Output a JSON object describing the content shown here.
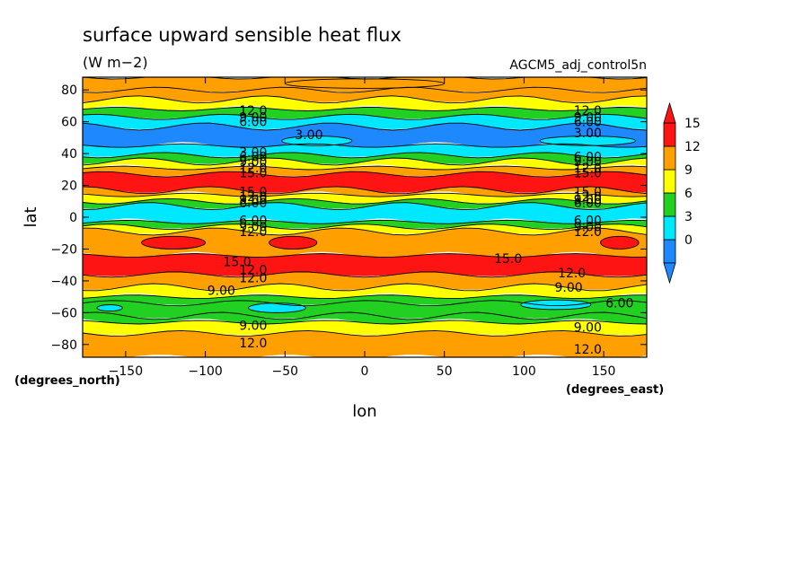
{
  "chart_data": {
    "type": "heatmap",
    "title": "surface upward sensible heat flux",
    "units": "(W m−2)",
    "dataset": "AGCM5_adj_control5n",
    "xlabel": "lon",
    "ylabel": "lat",
    "x_unit_label": "(degrees_east)",
    "y_unit_label": "(degrees_north)",
    "xlim": [
      -177,
      177
    ],
    "ylim": [
      -88,
      88
    ],
    "x_ticks": [
      -150,
      -100,
      -50,
      0,
      50,
      100,
      150
    ],
    "y_ticks": [
      -80,
      -60,
      -40,
      -20,
      0,
      20,
      40,
      60,
      80
    ],
    "x_tick_labels": [
      "−150",
      "−100",
      "−50",
      "0",
      "50",
      "100",
      "150"
    ],
    "y_tick_labels": [
      "−80",
      "−60",
      "−40",
      "−20",
      "0",
      "20",
      "40",
      "60",
      "80"
    ],
    "colorbar": {
      "levels": [
        0,
        3,
        6,
        9,
        12,
        15
      ],
      "labels": [
        "0",
        "3",
        "6",
        "9",
        "12",
        "15"
      ],
      "colors": [
        "#1e88ff",
        "#00e8ff",
        "#22d022",
        "#ffff00",
        "#ffa000",
        "#ff1414"
      ],
      "extend": "both"
    },
    "bands": [
      {
        "lat": [
          80,
          88
        ],
        "value": 12
      },
      {
        "lat": [
          74,
          80
        ],
        "value": 12
      },
      {
        "lat": [
          68,
          74
        ],
        "value": 9
      },
      {
        "lat": [
          63,
          68
        ],
        "value": 6
      },
      {
        "lat": [
          57,
          63
        ],
        "value": 3
      },
      {
        "lat": [
          45,
          57
        ],
        "value": 0
      },
      {
        "lat": [
          39,
          45
        ],
        "value": 3
      },
      {
        "lat": [
          35,
          39
        ],
        "value": 6
      },
      {
        "lat": [
          31,
          35
        ],
        "value": 9
      },
      {
        "lat": [
          27,
          31
        ],
        "value": 12
      },
      {
        "lat": [
          17,
          27
        ],
        "value": 15
      },
      {
        "lat": [
          14,
          17
        ],
        "value": 12
      },
      {
        "lat": [
          10,
          14
        ],
        "value": 9
      },
      {
        "lat": [
          7,
          10
        ],
        "value": 6
      },
      {
        "lat": [
          -3,
          7
        ],
        "value": 3
      },
      {
        "lat": [
          -6,
          -3
        ],
        "value": 6
      },
      {
        "lat": [
          -9,
          -6
        ],
        "value": 9
      },
      {
        "lat": [
          -24,
          -9
        ],
        "value": 12
      },
      {
        "lat": [
          -36,
          -24
        ],
        "value": 15
      },
      {
        "lat": [
          -44,
          -36
        ],
        "value": 12
      },
      {
        "lat": [
          -50,
          -44
        ],
        "value": 9
      },
      {
        "lat": [
          -54,
          -50
        ],
        "value": 6
      },
      {
        "lat": [
          -62,
          -54
        ],
        "value": 6
      },
      {
        "lat": [
          -66,
          -62
        ],
        "value": 6
      },
      {
        "lat": [
          -73,
          -66
        ],
        "value": 9
      },
      {
        "lat": [
          -88,
          -73
        ],
        "value": 12
      }
    ],
    "blobs": [
      {
        "lon": -30,
        "lat": 48,
        "rlon": 22,
        "rlat": 3,
        "value": 3
      },
      {
        "lon": 140,
        "lat": 48,
        "rlon": 30,
        "rlat": 3,
        "value": 3
      },
      {
        "lon": -55,
        "lat": -57,
        "rlon": 18,
        "rlat": 3,
        "value": 3
      },
      {
        "lon": -160,
        "lat": -57,
        "rlon": 8,
        "rlat": 2,
        "value": 3
      },
      {
        "lon": 120,
        "lat": -55,
        "rlon": 22,
        "rlat": 3,
        "value": 3
      },
      {
        "lon": -120,
        "lat": -16,
        "rlon": 20,
        "rlat": 4,
        "value": 15
      },
      {
        "lon": -45,
        "lat": -16,
        "rlon": 15,
        "rlat": 4,
        "value": 15
      },
      {
        "lon": 160,
        "lat": -16,
        "rlon": 12,
        "rlat": 4,
        "value": 15
      },
      {
        "lon": 0,
        "lat": 84,
        "rlon": 50,
        "rlat": 3,
        "value": 12
      }
    ],
    "contour_labels": [
      {
        "text": "12.0",
        "lon": -70,
        "lat": 67
      },
      {
        "text": "9.00",
        "lon": -70,
        "lat": 63
      },
      {
        "text": "6.00",
        "lon": -70,
        "lat": 60
      },
      {
        "text": "3.00",
        "lon": -35,
        "lat": 52
      },
      {
        "text": "3.00",
        "lon": -70,
        "lat": 41
      },
      {
        "text": "6.00",
        "lon": -70,
        "lat": 38
      },
      {
        "text": "9.00",
        "lon": -70,
        "lat": 35
      },
      {
        "text": "12.0",
        "lon": -70,
        "lat": 31
      },
      {
        "text": "15.0",
        "lon": -70,
        "lat": 28
      },
      {
        "text": "15.0",
        "lon": -70,
        "lat": 16
      },
      {
        "text": "12.0",
        "lon": -70,
        "lat": 13
      },
      {
        "text": "9.00",
        "lon": -70,
        "lat": 11
      },
      {
        "text": "6.00",
        "lon": -70,
        "lat": 9
      },
      {
        "text": "6.00",
        "lon": -70,
        "lat": -2
      },
      {
        "text": "9.00",
        "lon": -70,
        "lat": -6
      },
      {
        "text": "12.0",
        "lon": -70,
        "lat": -9
      },
      {
        "text": "15.0",
        "lon": -80,
        "lat": -28
      },
      {
        "text": "12.0",
        "lon": -70,
        "lat": -33
      },
      {
        "text": "12.0",
        "lon": -70,
        "lat": -38
      },
      {
        "text": "9.00",
        "lon": -90,
        "lat": -46
      },
      {
        "text": "9.00",
        "lon": -70,
        "lat": -68
      },
      {
        "text": "12.0",
        "lon": -70,
        "lat": -79
      },
      {
        "text": "12.0",
        "lon": 140,
        "lat": 67
      },
      {
        "text": "9.00",
        "lon": 140,
        "lat": 63
      },
      {
        "text": "6.00",
        "lon": 140,
        "lat": 60
      },
      {
        "text": "3.00",
        "lon": 140,
        "lat": 53
      },
      {
        "text": "6.00",
        "lon": 140,
        "lat": 38
      },
      {
        "text": "9.00",
        "lon": 140,
        "lat": 35
      },
      {
        "text": "12.0",
        "lon": 140,
        "lat": 31
      },
      {
        "text": "15.0",
        "lon": 140,
        "lat": 28
      },
      {
        "text": "15.0",
        "lon": 140,
        "lat": 16
      },
      {
        "text": "12.0",
        "lon": 140,
        "lat": 13
      },
      {
        "text": "9.00",
        "lon": 140,
        "lat": 11
      },
      {
        "text": "6.00",
        "lon": 140,
        "lat": 9
      },
      {
        "text": "6.00",
        "lon": 140,
        "lat": -2
      },
      {
        "text": "9.00",
        "lon": 140,
        "lat": -6
      },
      {
        "text": "12.0",
        "lon": 140,
        "lat": -9
      },
      {
        "text": "15.0",
        "lon": 90,
        "lat": -26
      },
      {
        "text": "12.0",
        "lon": 130,
        "lat": -35
      },
      {
        "text": "9.00",
        "lon": 128,
        "lat": -44
      },
      {
        "text": "6.00",
        "lon": 160,
        "lat": -54
      },
      {
        "text": "9.00",
        "lon": 140,
        "lat": -69
      },
      {
        "text": "12.0",
        "lon": 140,
        "lat": -83
      }
    ]
  }
}
